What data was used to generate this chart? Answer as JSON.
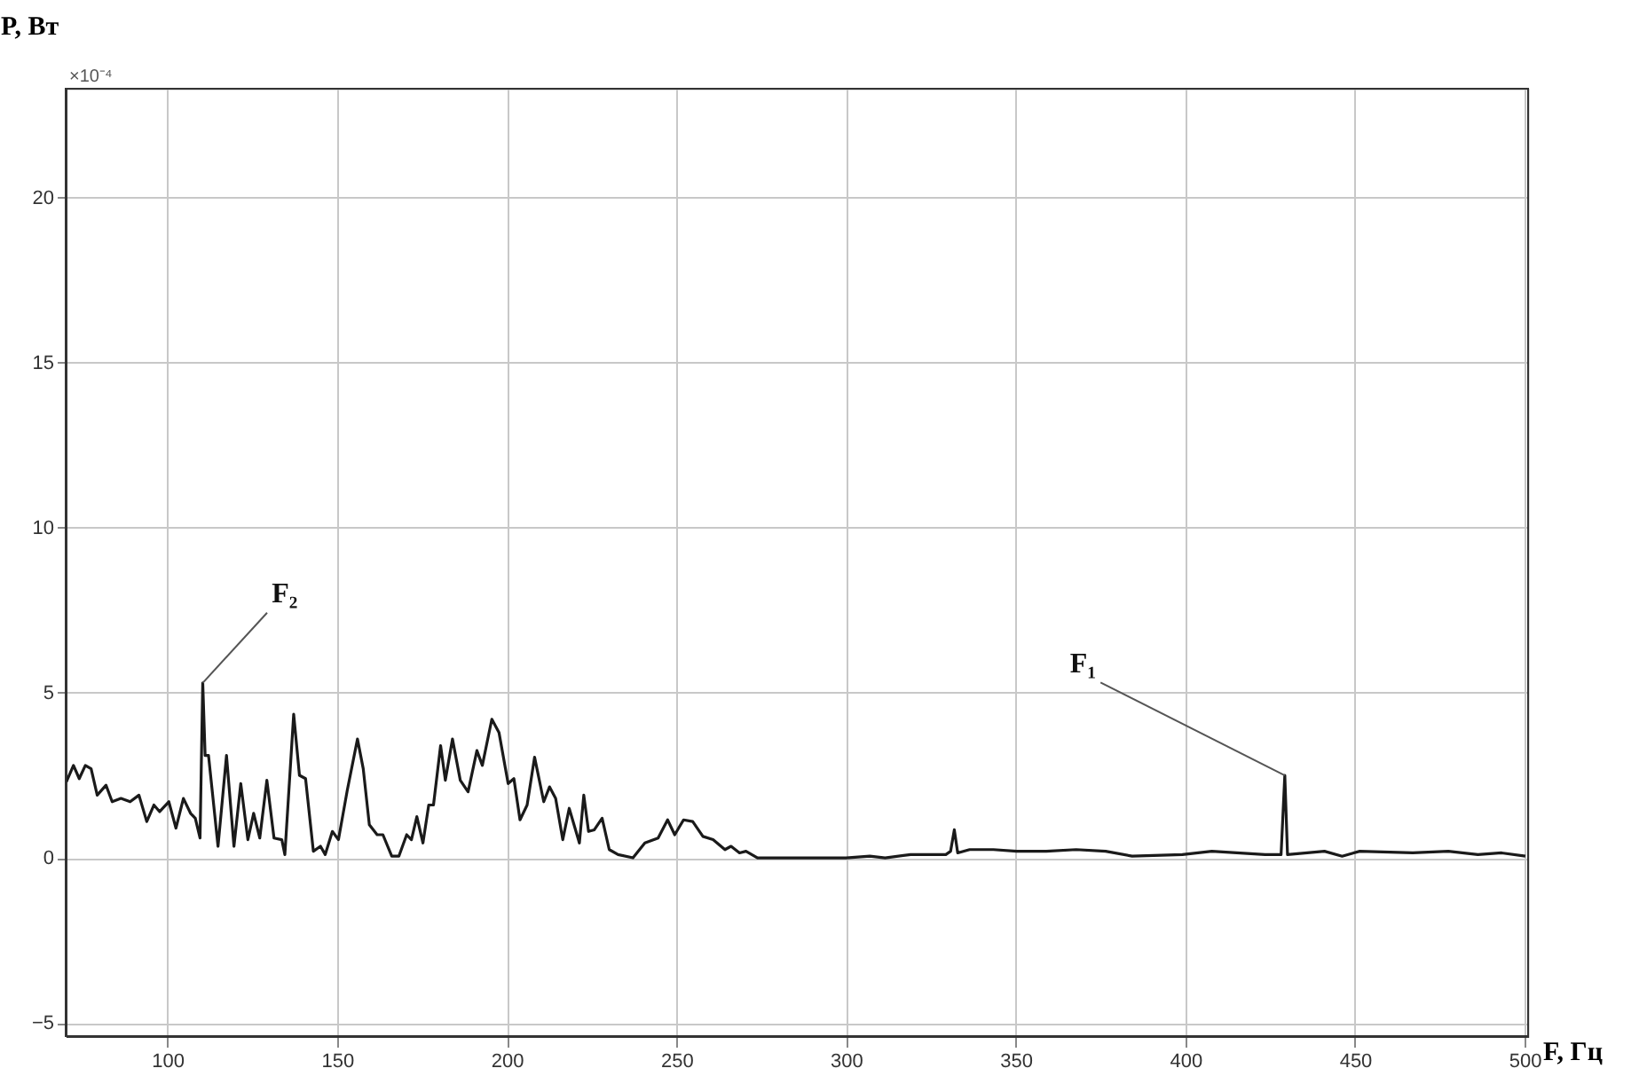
{
  "chart_data": {
    "type": "line",
    "xlabel": "F, Гц",
    "ylabel": "P, Вт",
    "x": [
      70.2,
      72.3,
      74,
      75.8,
      77.5,
      79.3,
      81.9,
      83.7,
      86.3,
      89,
      91.6,
      93.9,
      96,
      97.7,
      100.4,
      102.5,
      104.7,
      106.8,
      108.2,
      109.6,
      110.4,
      111.1,
      112.1,
      114.9,
      117.4,
      119.6,
      121.6,
      123.7,
      125.4,
      127.2,
      129.3,
      131.4,
      133.7,
      134.6,
      137.2,
      138.9,
      140.7,
      143,
      145.1,
      146.5,
      148.6,
      150.4,
      153,
      156,
      157.7,
      159.5,
      161.8,
      163.5,
      166.1,
      168.2,
      170.5,
      171.9,
      173.5,
      175.3,
      177,
      178.4,
      180.5,
      181.9,
      184,
      186.3,
      188.6,
      191.2,
      192.8,
      195.6,
      197.7,
      200.4,
      202.1,
      203.9,
      206,
      208.2,
      210.9,
      212.6,
      214.4,
      216.5,
      218.4,
      221.4,
      222.7,
      224.1,
      225.8,
      228.1,
      230.2,
      232.8,
      237.2,
      240.7,
      244.6,
      247.4,
      249.5,
      252.1,
      254.8,
      257.8,
      260.8,
      264.3,
      266.1,
      268.6,
      270.5,
      273.9,
      280.9,
      291.4,
      300,
      307,
      311.5,
      319,
      329.4,
      330.8,
      331.9,
      332.9,
      336.4,
      343.4,
      350.3,
      359,
      367.8,
      376.5,
      384.3,
      399.1,
      407.8,
      423.5,
      428.2,
      429.3,
      430.1,
      441,
      446.2,
      451.4,
      467,
      477.5,
      486.2,
      493.2,
      500.2
    ],
    "series": [
      {
        "color": "#1a1a1a",
        "values": [
          2.3,
          2.8,
          2.4,
          2.8,
          2.7,
          1.9,
          2.2,
          1.7,
          1.8,
          1.7,
          1.9,
          1.1,
          1.6,
          1.4,
          1.7,
          0.9,
          1.8,
          1.35,
          1.2,
          0.6,
          5.3,
          3.1,
          3.1,
          0.35,
          3.1,
          0.35,
          2.25,
          0.55,
          1.35,
          0.6,
          2.35,
          0.6,
          0.55,
          0.1,
          4.35,
          2.5,
          2.4,
          0.2,
          0.35,
          0.1,
          0.8,
          0.55,
          2.05,
          3.6,
          2.7,
          1.0,
          0.7,
          0.7,
          0.05,
          0.05,
          0.7,
          0.55,
          1.25,
          0.45,
          1.6,
          1.6,
          3.4,
          2.35,
          3.6,
          2.35,
          2.0,
          3.25,
          2.8,
          4.2,
          3.8,
          2.25,
          2.4,
          1.15,
          1.6,
          3.05,
          1.7,
          2.15,
          1.8,
          0.55,
          1.5,
          0.45,
          1.9,
          0.8,
          0.85,
          1.2,
          0.25,
          0.1,
          0,
          0.45,
          0.6,
          1.15,
          0.7,
          1.15,
          1.1,
          0.65,
          0.55,
          0.25,
          0.35,
          0.15,
          0.2,
          0,
          0,
          0,
          0,
          0.05,
          0,
          0.1,
          0.1,
          0.2,
          0.85,
          0.15,
          0.25,
          0.25,
          0.2,
          0.2,
          0.25,
          0.2,
          0.05,
          0.1,
          0.2,
          0.1,
          0.1,
          2.5,
          0.1,
          0.2,
          0.05,
          0.2,
          0.15,
          0.2,
          0.1,
          0.15,
          0.05
        ]
      }
    ],
    "xlim": [
      70,
      501
    ],
    "ylim": [
      -5.4,
      23.3
    ],
    "xticks": [
      100,
      150,
      200,
      250,
      300,
      350,
      400,
      450,
      500
    ],
    "yticks": [
      -5,
      0,
      5,
      10,
      15,
      20
    ],
    "grid": true,
    "marker": "none",
    "line_style": "solid",
    "annotations": [
      "×10⁻⁴",
      {
        "text": "F₂",
        "x": 110.4,
        "y": 5.3
      },
      {
        "text": "F₁",
        "x": 429.3,
        "y": 2.5
      }
    ]
  }
}
